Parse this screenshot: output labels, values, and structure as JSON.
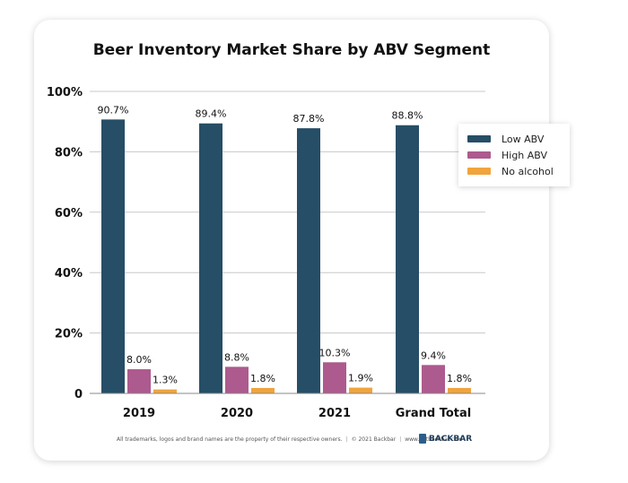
{
  "chart_data": {
    "type": "bar",
    "title": "Beer Inventory Market Share by ABV Segment",
    "categories": [
      "2019",
      "2020",
      "2021",
      "Grand Total"
    ],
    "series": [
      {
        "name": "Low ABV",
        "color": "#264e66",
        "values": [
          90.7,
          89.4,
          87.8,
          88.8
        ],
        "labels": [
          "90.7%",
          "89.4%",
          "87.8%",
          "88.8%"
        ]
      },
      {
        "name": "High ABV",
        "color": "#ad5a8e",
        "values": [
          8.0,
          8.8,
          10.3,
          9.4
        ],
        "labels": [
          "8.0%",
          "8.8%",
          "10.3%",
          "9.4%"
        ]
      },
      {
        "name": "No alcohol",
        "color": "#f0a43c",
        "values": [
          1.3,
          1.8,
          1.9,
          1.8
        ],
        "labels": [
          "1.3%",
          "1.8%",
          "1.9%",
          "1.8%"
        ]
      }
    ],
    "ylim": [
      0,
      100
    ],
    "yticks": [
      {
        "value": 0,
        "label": "0"
      },
      {
        "value": 20,
        "label": "20%"
      },
      {
        "value": 40,
        "label": "40%"
      },
      {
        "value": 60,
        "label": "60%"
      },
      {
        "value": 80,
        "label": "80%"
      },
      {
        "value": 100,
        "label": "100%"
      }
    ],
    "grid": true,
    "legend_position": "right"
  },
  "footer": {
    "trademark": "All trademarks, logos and brand names are the property of their respective owners.",
    "copyright": "© 2021 Backbar",
    "website": "www.getbackbar.com",
    "brand": "BACKBAR"
  }
}
